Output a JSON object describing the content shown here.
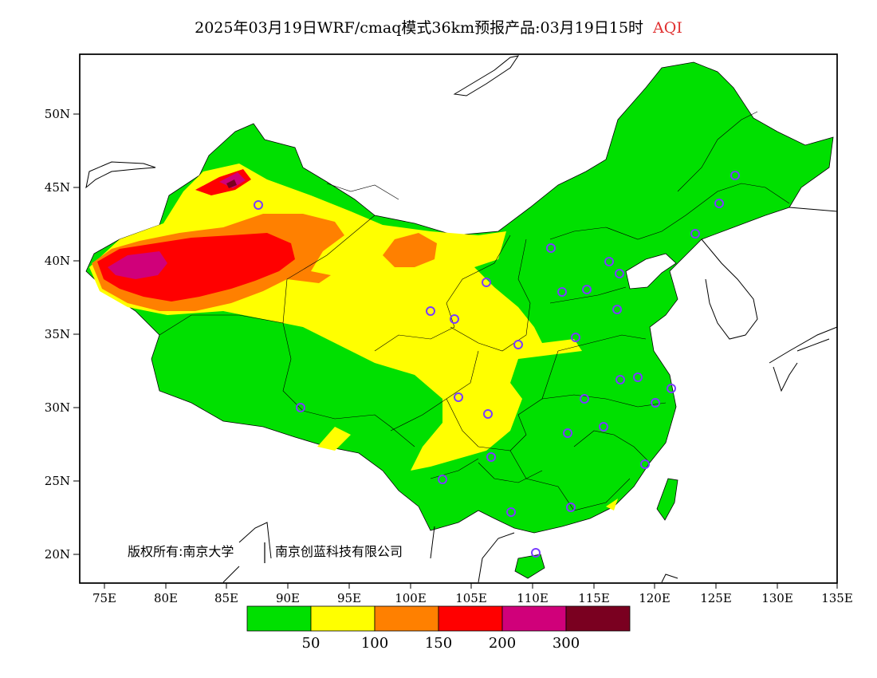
{
  "title": {
    "main": "2025年03月19日WRF/cmaq模式36km预报产品:03月19日15时",
    "variable": "AQI",
    "variable_color": "#e03030"
  },
  "axes": {
    "lat_labels": [
      "50N",
      "45N",
      "40N",
      "35N",
      "30N",
      "25N",
      "20N"
    ],
    "lon_labels": [
      "75E",
      "80E",
      "85E",
      "90E",
      "95E",
      "100E",
      "105E",
      "110E",
      "115E",
      "120E",
      "125E",
      "130E",
      "135E"
    ]
  },
  "copyright": {
    "text1": "版权所有:南京大学",
    "text2": "南京创蓝科技有限公司"
  },
  "legend": {
    "colors": [
      "#00e000",
      "#ffff00",
      "#ff8000",
      "#ff0000",
      "#d0007a",
      "#7a0020"
    ],
    "labels": [
      "50",
      "100",
      "150",
      "200",
      "300"
    ]
  },
  "station_color": "#7a3cff"
}
